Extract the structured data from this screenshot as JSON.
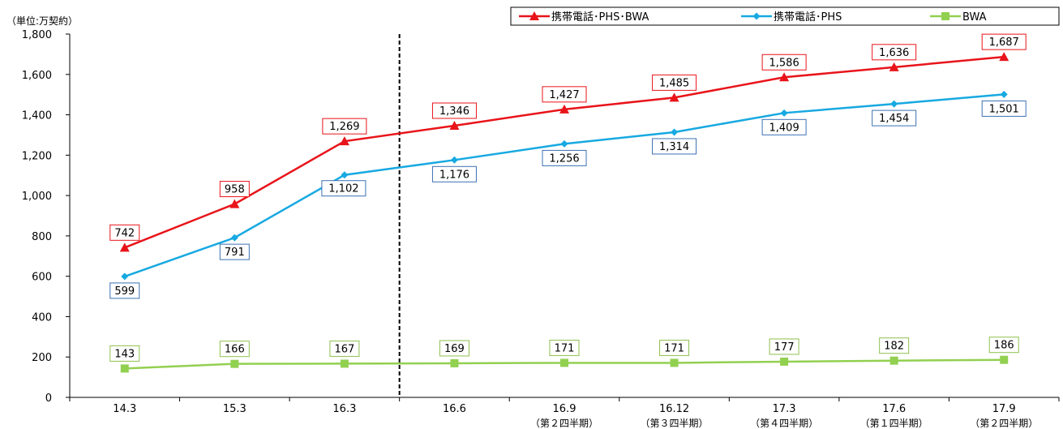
{
  "chart_data": {
    "type": "line",
    "unit_label": "（単位:万契約）",
    "categories": [
      "14.3",
      "15.3",
      "16.3",
      "16.6",
      "16.9",
      "16.12",
      "17.3",
      "17.6",
      "17.9"
    ],
    "category_sublabels": [
      "",
      "",
      "",
      "",
      "（第２四半期）",
      "（第３四半期）",
      "（第４四半期）",
      "（第１四半期）",
      "（第２四半期）"
    ],
    "y_ticks": [
      "0",
      "200",
      "400",
      "600",
      "800",
      "1,000",
      "1,200",
      "1,400",
      "1,600",
      "1,800"
    ],
    "ylim": [
      0,
      1800
    ],
    "divider_after_index": 2,
    "legend_position": "top-right",
    "series": [
      {
        "name": "携帯電話･PHS･BWA",
        "color": "#e8141a",
        "marker": "triangle",
        "values": [
          742,
          958,
          1269,
          1346,
          1427,
          1485,
          1586,
          1636,
          1687
        ],
        "labels": [
          "742",
          "958",
          "1,269",
          "1,346",
          "1,427",
          "1,485",
          "1,586",
          "1,636",
          "1,687"
        ]
      },
      {
        "name": "携帯電話･PHS",
        "color": "#17a9e1",
        "marker": "diamond",
        "values": [
          599,
          791,
          1102,
          1176,
          1256,
          1314,
          1409,
          1454,
          1501
        ],
        "labels": [
          "599",
          "791",
          "1,102",
          "1,176",
          "1,256",
          "1,314",
          "1,409",
          "1,454",
          "1,501"
        ],
        "label_border": "#3c70b4"
      },
      {
        "name": "BWA",
        "color": "#92d050",
        "marker": "square",
        "values": [
          143,
          166,
          167,
          169,
          171,
          171,
          177,
          182,
          186
        ],
        "labels": [
          "143",
          "166",
          "167",
          "169",
          "171",
          "171",
          "177",
          "182",
          "186"
        ],
        "label_border": "#8fc04f"
      }
    ]
  }
}
